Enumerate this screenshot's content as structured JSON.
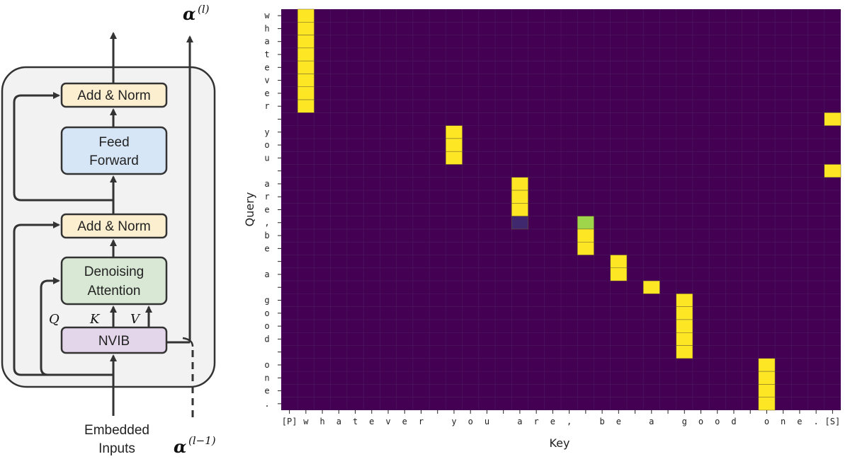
{
  "diagram": {
    "boxes": {
      "add_norm_top": "Add & Norm",
      "feed_forward_line1": "Feed",
      "feed_forward_line2": "Forward",
      "add_norm_bottom": "Add & Norm",
      "denoising_line1": "Denoising",
      "denoising_line2": "Attention",
      "nvib": "NVIB"
    },
    "qkv": {
      "q": "Q",
      "k": "K",
      "v": "V"
    },
    "inputs_line1": "Embedded",
    "inputs_line2": "Inputs",
    "alpha_out": "α",
    "alpha_out_sup": "(l)",
    "alpha_in": "α",
    "alpha_in_sup": "(l−1)",
    "colors": {
      "add_norm": "#fcefcf",
      "feed_forward": "#d7e6f7",
      "denoising": "#d8e8d4",
      "nvib": "#e4d6ea",
      "container": "#f2f2f2",
      "stroke": "#333333"
    }
  },
  "chart_data": {
    "type": "heatmap",
    "xlabel": "Key",
    "ylabel": "Query",
    "x_ticks": [
      "[P]",
      "w",
      "h",
      "a",
      "t",
      "e",
      "v",
      "e",
      "r",
      "",
      "y",
      "o",
      "u",
      "",
      "a",
      "r",
      "e",
      ",",
      "",
      "b",
      "e",
      "",
      "a",
      "",
      "g",
      "o",
      "o",
      "d",
      "",
      "o",
      "n",
      "e",
      ".",
      "[S]"
    ],
    "y_ticks": [
      "w",
      "h",
      "a",
      "t",
      "e",
      "v",
      "e",
      "r",
      "",
      "y",
      "o",
      "u",
      "",
      "a",
      "r",
      "e",
      ",",
      "b",
      "e",
      "",
      "a",
      "",
      "g",
      "o",
      "o",
      "d",
      "",
      "o",
      "n",
      "e",
      "."
    ],
    "background_color": "#440154",
    "high_color": "#fde725",
    "cells": [
      {
        "row": 0,
        "col": 1,
        "value": 1.0
      },
      {
        "row": 1,
        "col": 1,
        "value": 1.0
      },
      {
        "row": 2,
        "col": 1,
        "value": 1.0
      },
      {
        "row": 3,
        "col": 1,
        "value": 1.0
      },
      {
        "row": 4,
        "col": 1,
        "value": 1.0
      },
      {
        "row": 5,
        "col": 1,
        "value": 1.0
      },
      {
        "row": 6,
        "col": 1,
        "value": 1.0
      },
      {
        "row": 7,
        "col": 1,
        "value": 1.0
      },
      {
        "row": 8,
        "col": 33,
        "value": 1.0
      },
      {
        "row": 9,
        "col": 10,
        "value": 1.0
      },
      {
        "row": 10,
        "col": 10,
        "value": 1.0
      },
      {
        "row": 11,
        "col": 10,
        "value": 1.0
      },
      {
        "row": 12,
        "col": 33,
        "value": 1.0
      },
      {
        "row": 13,
        "col": 14,
        "value": 1.0
      },
      {
        "row": 14,
        "col": 14,
        "value": 1.0
      },
      {
        "row": 15,
        "col": 14,
        "value": 1.0
      },
      {
        "row": 16,
        "col": 14,
        "value": 0.12
      },
      {
        "row": 16,
        "col": 18,
        "value": 0.85
      },
      {
        "row": 17,
        "col": 18,
        "value": 1.0
      },
      {
        "row": 18,
        "col": 18,
        "value": 1.0
      },
      {
        "row": 19,
        "col": 20,
        "value": 1.0
      },
      {
        "row": 20,
        "col": 20,
        "value": 1.0
      },
      {
        "row": 21,
        "col": 22,
        "value": 1.0
      },
      {
        "row": 22,
        "col": 24,
        "value": 1.0
      },
      {
        "row": 23,
        "col": 24,
        "value": 1.0
      },
      {
        "row": 24,
        "col": 24,
        "value": 1.0
      },
      {
        "row": 25,
        "col": 24,
        "value": 1.0
      },
      {
        "row": 26,
        "col": 24,
        "value": 1.0
      },
      {
        "row": 27,
        "col": 29,
        "value": 1.0
      },
      {
        "row": 28,
        "col": 29,
        "value": 1.0
      },
      {
        "row": 29,
        "col": 29,
        "value": 1.0
      },
      {
        "row": 30,
        "col": 29,
        "value": 1.0
      }
    ]
  }
}
